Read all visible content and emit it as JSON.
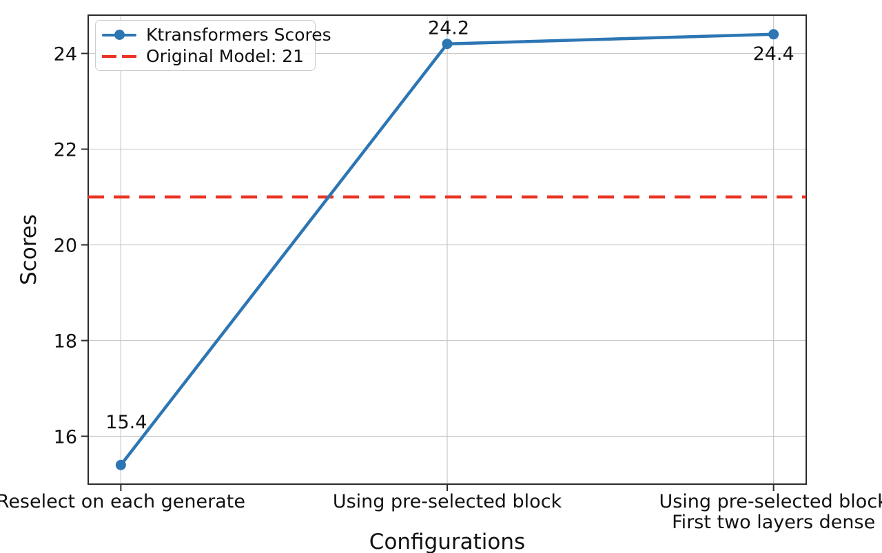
{
  "chart_data": {
    "type": "line",
    "title": "",
    "xlabel": "Configurations",
    "ylabel": "Scores",
    "categories": [
      "Reselect on each generate",
      "Using pre-selected block",
      "Using pre-selected block\nFirst two layers dense"
    ],
    "series": [
      {
        "name": "Ktransformers Scores",
        "values": [
          15.4,
          24.2,
          24.4
        ],
        "color": "#2d76b4",
        "marker": "circle",
        "line_style": "solid"
      }
    ],
    "reference_line": {
      "label": "Original Model: 21",
      "value": 21,
      "color": "#ea3223",
      "line_style": "dashed"
    },
    "point_labels": [
      "15.4",
      "24.2",
      "24.4"
    ],
    "yticks": [
      16,
      18,
      20,
      22,
      24
    ],
    "ylim": [
      15.0,
      24.8
    ],
    "xlim": [
      -0.1,
      2.1
    ],
    "grid": true,
    "grid_color": "#c8c8c8",
    "text_color": "#111111",
    "spine_color": "#2b2b2b",
    "legend_position": "upper left",
    "legend_entries": [
      "Ktransformers Scores",
      "Original Model: 21"
    ]
  }
}
